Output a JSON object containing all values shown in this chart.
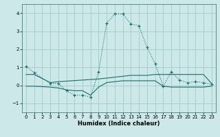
{
  "xlabel": "Humidex (Indice chaleur)",
  "bg_color": "#cce8e8",
  "grid_color": "#aacccc",
  "line_color": "#1a6b6b",
  "xlim": [
    -0.5,
    23.5
  ],
  "ylim": [
    -1.5,
    4.5
  ],
  "yticks": [
    -1,
    0,
    1,
    2,
    3,
    4
  ],
  "xticks": [
    0,
    1,
    2,
    3,
    4,
    5,
    6,
    7,
    8,
    9,
    10,
    11,
    12,
    13,
    14,
    15,
    16,
    17,
    18,
    19,
    20,
    21,
    22,
    23
  ],
  "series": [
    {
      "x": [
        0,
        1,
        3,
        4,
        5,
        6,
        7,
        8,
        9,
        10,
        11,
        12,
        13,
        14,
        15,
        16,
        17,
        18,
        19,
        20,
        21,
        22,
        23
      ],
      "y": [
        1.05,
        0.7,
        0.1,
        0.1,
        -0.3,
        -0.55,
        -0.55,
        -0.65,
        0.75,
        3.45,
        3.95,
        3.95,
        3.4,
        3.3,
        2.1,
        1.2,
        -0.05,
        0.75,
        0.3,
        0.15,
        0.2,
        0.15,
        0.05
      ],
      "style": "dotted_marker"
    },
    {
      "x": [
        0,
        1,
        3,
        4,
        9,
        10,
        11,
        12,
        13,
        14,
        15,
        16,
        17,
        18,
        19,
        20,
        21,
        22,
        23
      ],
      "y": [
        0.6,
        0.6,
        0.15,
        0.2,
        0.35,
        0.4,
        0.45,
        0.5,
        0.55,
        0.55,
        0.55,
        0.6,
        0.6,
        0.6,
        0.6,
        0.6,
        0.6,
        0.6,
        0.1
      ],
      "style": "solid"
    },
    {
      "x": [
        0,
        1,
        3,
        4,
        5,
        6,
        7,
        8,
        9,
        10,
        11,
        12,
        13,
        14,
        15,
        16,
        17,
        18,
        19,
        20,
        21,
        22,
        23
      ],
      "y": [
        -0.05,
        -0.05,
        -0.1,
        -0.15,
        -0.25,
        -0.3,
        -0.3,
        -0.55,
        -0.1,
        0.15,
        0.2,
        0.25,
        0.25,
        0.25,
        0.25,
        0.25,
        -0.05,
        -0.1,
        -0.1,
        -0.1,
        -0.1,
        -0.1,
        -0.05
      ],
      "style": "solid"
    }
  ]
}
